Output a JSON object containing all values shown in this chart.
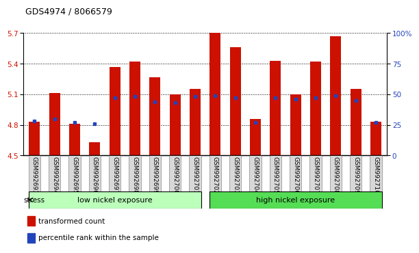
{
  "title": "GDS4974 / 8066579",
  "samples": [
    "GSM992693",
    "GSM992694",
    "GSM992695",
    "GSM992696",
    "GSM992697",
    "GSM992698",
    "GSM992699",
    "GSM992700",
    "GSM992701",
    "GSM992702",
    "GSM992703",
    "GSM992704",
    "GSM992705",
    "GSM992706",
    "GSM992707",
    "GSM992708",
    "GSM992709",
    "GSM992710"
  ],
  "transformed_count": [
    4.83,
    5.11,
    4.81,
    4.63,
    5.37,
    5.42,
    5.27,
    5.1,
    5.15,
    5.7,
    5.56,
    4.86,
    5.43,
    5.1,
    5.42,
    5.67,
    5.15,
    4.83
  ],
  "percentile_rank": [
    28,
    30,
    27,
    26,
    47,
    48,
    44,
    43,
    48,
    49,
    47,
    27,
    47,
    46,
    47,
    49,
    45,
    27
  ],
  "ymin": 4.5,
  "ymax": 5.7,
  "yticks": [
    4.5,
    4.8,
    5.1,
    5.4,
    5.7
  ],
  "right_yticks": [
    0,
    25,
    50,
    75,
    100
  ],
  "bar_color": "#cc1100",
  "blue_color": "#2244bb",
  "bg_color": "#ffffff",
  "group1_label": "low nickel exposure",
  "group2_label": "high nickel exposure",
  "group1_count": 9,
  "group2_count": 9,
  "group1_color": "#bbffbb",
  "group2_color": "#55dd55",
  "stress_label": "stress",
  "legend1": "transformed count",
  "legend2": "percentile rank within the sample",
  "bar_width": 0.55,
  "title_fontsize": 9,
  "axis_fontsize": 7.5,
  "tick_label_fontsize": 6.5
}
